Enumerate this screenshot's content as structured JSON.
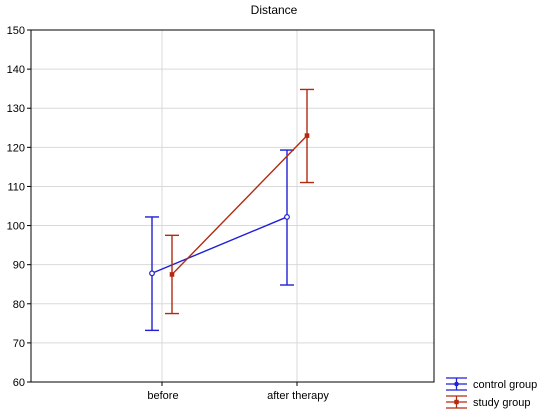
{
  "chart_data": {
    "type": "line",
    "title": "Distance",
    "xlabel": "",
    "ylabel": "",
    "categories": [
      "before",
      "after therapy"
    ],
    "ylim": [
      60,
      150
    ],
    "yticks": [
      60,
      70,
      80,
      90,
      100,
      110,
      120,
      130,
      140,
      150
    ],
    "grid": true,
    "legend_position": "bottom-right",
    "series": [
      {
        "name": "control group",
        "color": "#1f1fd6",
        "marker": "circle",
        "values": [
          87.8,
          102.2
        ],
        "lower": [
          73.2,
          84.8
        ],
        "upper": [
          102.2,
          119.3
        ]
      },
      {
        "name": "study group",
        "color": "#b22a10",
        "marker": "square",
        "values": [
          87.5,
          123.0
        ],
        "lower": [
          77.5,
          111.0
        ],
        "upper": [
          97.5,
          134.8
        ]
      }
    ]
  }
}
